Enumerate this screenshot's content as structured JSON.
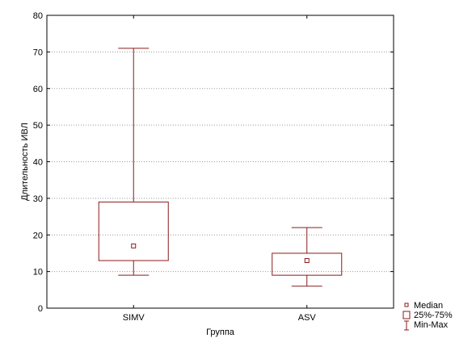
{
  "chart_data": {
    "type": "boxplot",
    "xlabel": "Группа",
    "ylabel": "Длительность ИВЛ",
    "ylim": [
      0,
      80
    ],
    "yticks": [
      0,
      10,
      20,
      30,
      40,
      50,
      60,
      70,
      80
    ],
    "grid": "horizontal dotted",
    "categories": [
      "SIMV",
      "ASV"
    ],
    "series": [
      {
        "category": "SIMV",
        "median": 17,
        "q1": 13,
        "q3": 29,
        "min": 9,
        "max": 71
      },
      {
        "category": "ASV",
        "median": 13,
        "q1": 9,
        "q3": 15,
        "min": 6,
        "max": 22
      }
    ],
    "legend": {
      "placement": "bottom-right",
      "entries": [
        "Median",
        "25%-75%",
        "Min-Max"
      ]
    },
    "colors": {
      "box": "#8b1a1a",
      "axis": "#000000",
      "grid": "#9a9a9a"
    }
  }
}
